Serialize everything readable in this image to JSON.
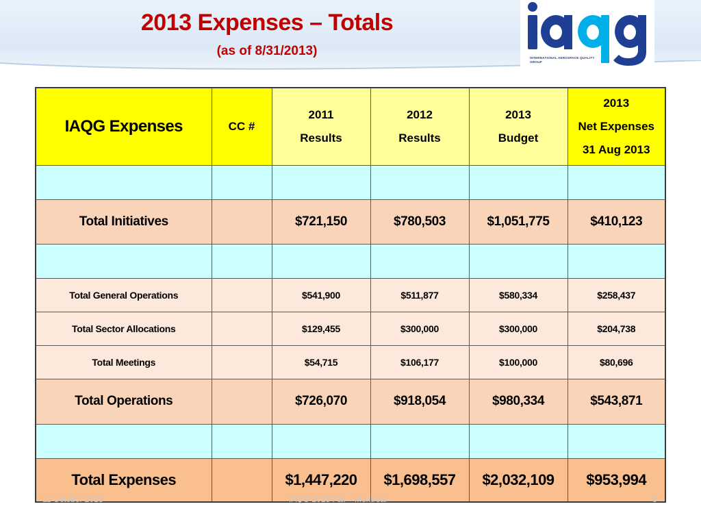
{
  "slide": {
    "title": "2013 Expenses – Totals",
    "subtitle": "(as of 8/31/2013)"
  },
  "logo": {
    "wordmark": "iaqg",
    "tagline": "International Aerospace Quality Group",
    "colors": {
      "navy": "#1f3f95",
      "cyan": "#00aee8"
    }
  },
  "table": {
    "headers": {
      "main": "IAQG Expenses",
      "cc": "CC #",
      "col2011": [
        "2011",
        "Results"
      ],
      "col2012": [
        "2012",
        "Results"
      ],
      "col2013": [
        "2013",
        "Budget"
      ],
      "colNet": [
        "2013",
        "Net Expenses",
        "31 Aug 2013"
      ]
    },
    "rows": [
      {
        "style": "blank"
      },
      {
        "style": "major",
        "label": "Total Initiatives",
        "cc": "",
        "v2011": "$721,150",
        "v2012": "$780,503",
        "v2013": "$1,051,775",
        "net": "$410,123"
      },
      {
        "style": "blank"
      },
      {
        "style": "minor",
        "label": "Total General Operations",
        "cc": "",
        "v2011": "$541,900",
        "v2012": "$511,877",
        "v2013": "$580,334",
        "net": "$258,437"
      },
      {
        "style": "minor",
        "label": "Total Sector Allocations",
        "cc": "",
        "v2011": "$129,455",
        "v2012": "$300,000",
        "v2013": "$300,000",
        "net": "$204,738"
      },
      {
        "style": "minor",
        "label": "Total Meetings",
        "cc": "",
        "v2011": "$54,715",
        "v2012": "$106,177",
        "v2013": "$100,000",
        "net": "$80,696"
      },
      {
        "style": "major",
        "label": "Total Operations",
        "cc": "",
        "v2011": "$726,070",
        "v2012": "$918,054",
        "v2013": "$980,334",
        "net": "$543,871"
      },
      {
        "style": "blank"
      },
      {
        "style": "total",
        "label": "Total Expenses",
        "cc": "",
        "v2011": "$1,447,220",
        "v2012": "$1,698,557",
        "v2013": "$2,032,109",
        "net": "$953,994"
      }
    ]
  },
  "footer": {
    "date": "11 October 2013",
    "event": "IAQG 2013 Fall – Montreal",
    "page": "8"
  },
  "colors": {
    "title": "#c00000",
    "header_yellow": "#ffff00",
    "header_light_yellow": "#ffff99",
    "blank_row": "#ccffff",
    "major_row": "#fad4b8",
    "minor_row": "#fde9dc",
    "total_row": "#f9bf8f"
  }
}
